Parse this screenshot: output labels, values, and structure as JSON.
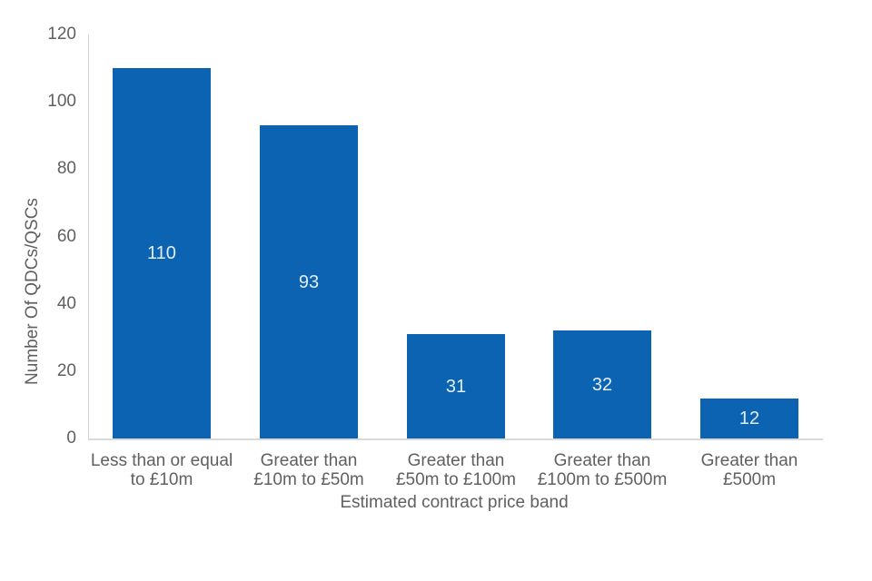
{
  "chart_data": {
    "type": "bar",
    "title": "",
    "categories": [
      "Less than or equal to £10m",
      "Greater than £10m to £50m",
      "Greater than £50m to £100m",
      "Greater than £100m to £500m",
      "Greater than £500m"
    ],
    "category_lines": [
      [
        "Less than or equal",
        "to £10m"
      ],
      [
        "Greater than",
        "£10m to £50m"
      ],
      [
        "Greater than",
        "£50m to £100m"
      ],
      [
        "Greater than",
        "£100m to £500m"
      ],
      [
        "Greater than",
        "£500m"
      ]
    ],
    "values": [
      110,
      93,
      31,
      32,
      12
    ],
    "data_labels": [
      "110",
      "93",
      "31",
      "32",
      "12"
    ],
    "xlabel": "Estimated contract price band",
    "ylabel": "Number Of QDCs/QSCs",
    "yticks": [
      0,
      20,
      40,
      60,
      80,
      100,
      120
    ],
    "ylim": [
      0,
      120
    ],
    "grid": false,
    "legend": false,
    "colors": {
      "bar": "#0b63b1",
      "data_label": "#e3edf8",
      "axis_text": "#606060",
      "axis_line": "#d9d9d9"
    }
  }
}
